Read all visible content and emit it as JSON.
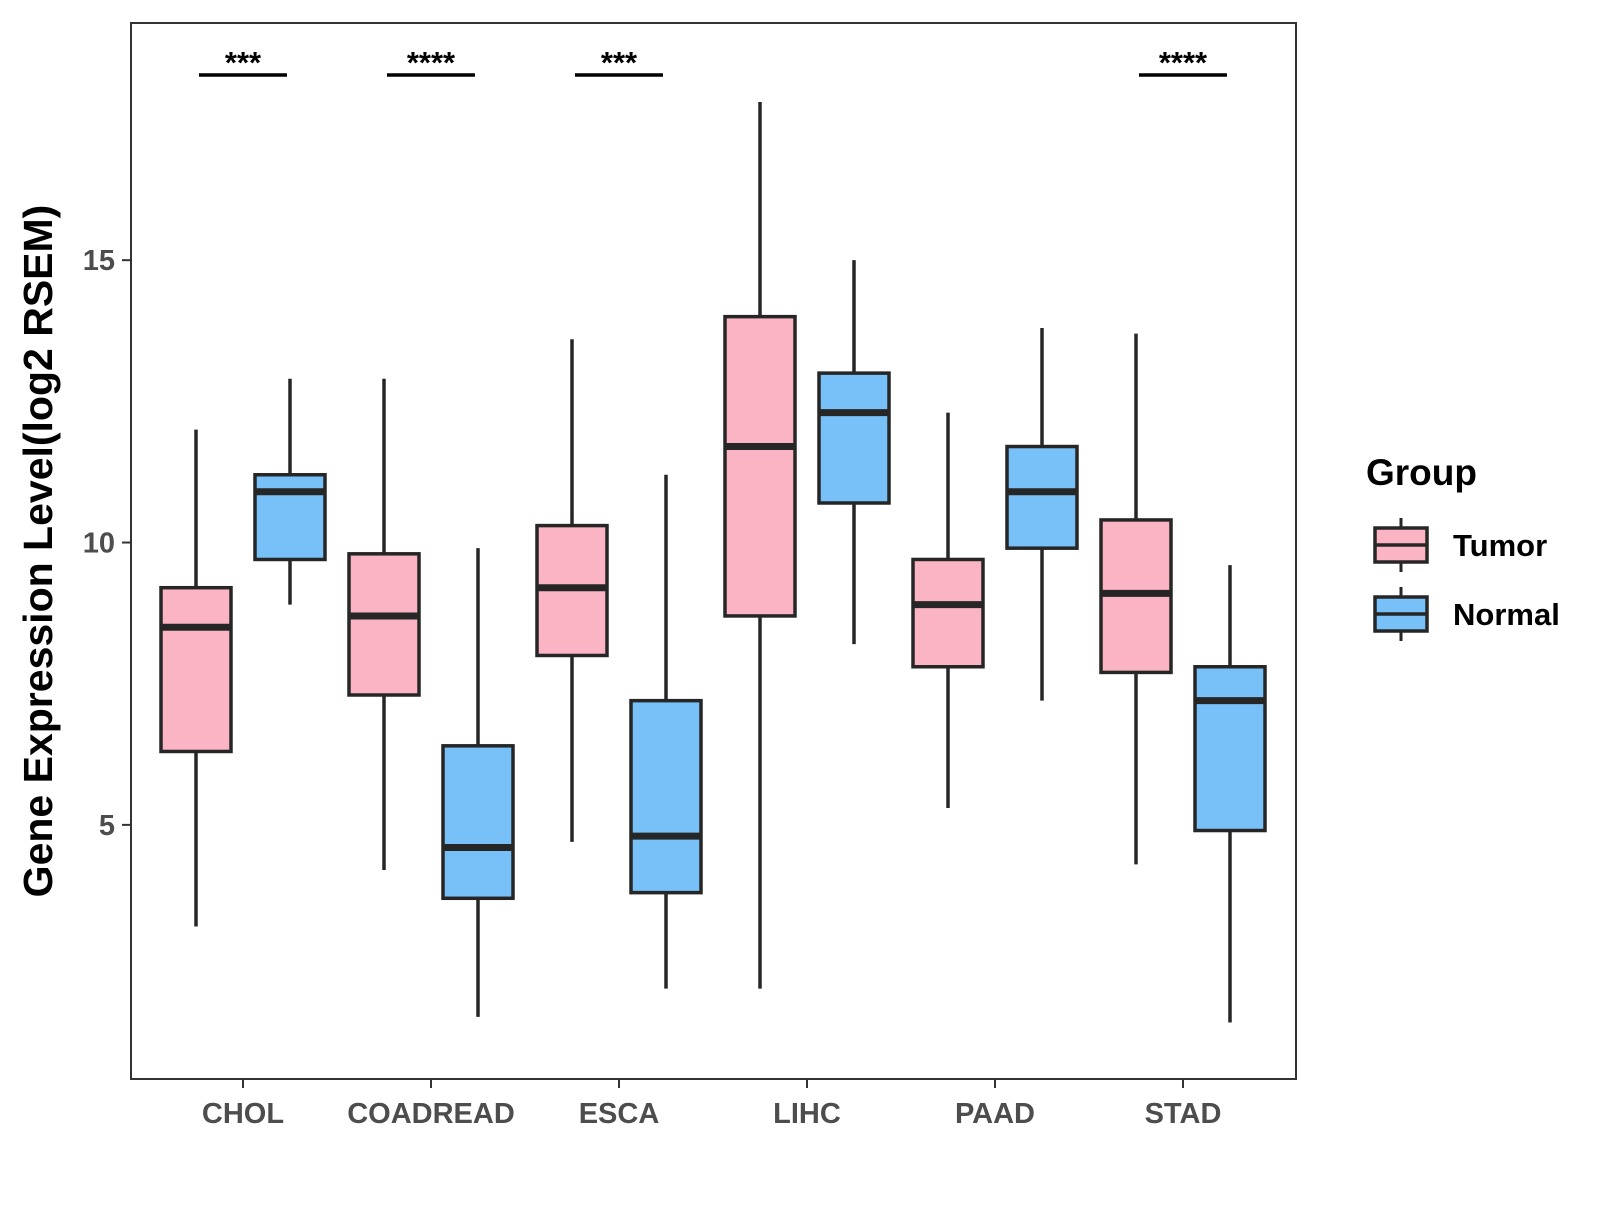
{
  "chart_data": {
    "type": "boxplot",
    "title": "",
    "xlabel": "",
    "ylabel": "Gene Expression Level(log2 RSEM)",
    "ylim": [
      0.5,
      19.2
    ],
    "yticks": [
      5,
      10,
      15
    ],
    "grid": false,
    "legend": {
      "title": "Group",
      "position": "right",
      "entries": [
        {
          "name": "Tumor",
          "color": "#FBB4C3"
        },
        {
          "name": "Normal",
          "color": "#78C1F8"
        }
      ]
    },
    "categories": [
      "CHOL",
      "COADREAD",
      "ESCA",
      "LIHC",
      "PAAD",
      "STAD"
    ],
    "series": [
      {
        "name": "Tumor",
        "color": "#FBB4C3",
        "boxes": [
          {
            "min": 3.2,
            "q1": 6.3,
            "median": 8.5,
            "q3": 9.2,
            "max": 12.0
          },
          {
            "min": 4.2,
            "q1": 7.3,
            "median": 8.7,
            "q3": 9.8,
            "max": 12.9
          },
          {
            "min": 4.7,
            "q1": 8.0,
            "median": 9.2,
            "q3": 10.3,
            "max": 13.6
          },
          {
            "min": 2.1,
            "q1": 8.7,
            "median": 11.7,
            "q3": 14.0,
            "max": 17.8
          },
          {
            "min": 5.3,
            "q1": 7.8,
            "median": 8.9,
            "q3": 9.7,
            "max": 12.3
          },
          {
            "min": 4.3,
            "q1": 7.7,
            "median": 9.1,
            "q3": 10.4,
            "max": 13.7
          }
        ]
      },
      {
        "name": "Normal",
        "color": "#78C1F8",
        "boxes": [
          {
            "min": 8.9,
            "q1": 9.7,
            "median": 10.9,
            "q3": 11.2,
            "max": 12.9
          },
          {
            "min": 1.6,
            "q1": 3.7,
            "median": 4.6,
            "q3": 6.4,
            "max": 9.9
          },
          {
            "min": 2.1,
            "q1": 3.8,
            "median": 4.8,
            "q3": 7.2,
            "max": 11.2
          },
          {
            "min": 8.2,
            "q1": 10.7,
            "median": 12.3,
            "q3": 13.0,
            "max": 15.0
          },
          {
            "min": 7.2,
            "q1": 9.9,
            "median": 10.9,
            "q3": 11.7,
            "max": 13.8
          },
          {
            "min": 1.5,
            "q1": 4.9,
            "median": 7.2,
            "q3": 7.8,
            "max": 9.6
          }
        ]
      }
    ],
    "annotations": [
      {
        "category": "CHOL",
        "label": "***"
      },
      {
        "category": "COADREAD",
        "label": "****"
      },
      {
        "category": "ESCA",
        "label": "***"
      },
      {
        "category": "STAD",
        "label": "****"
      }
    ]
  }
}
